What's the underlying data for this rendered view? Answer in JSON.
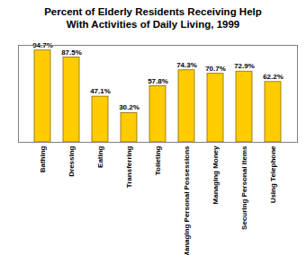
{
  "chart_data": {
    "type": "bar",
    "title": "Percent of Elderly Residents Receiving Help With Activities of Daily Living, 1999",
    "categories": [
      "Bathing",
      "Dressing",
      "Eating",
      "Transferring",
      "Toileting",
      "Managing Personal Possessions",
      "Managing Money",
      "Securing Personal Items",
      "Using Telephone"
    ],
    "values": [
      94.7,
      87.5,
      47.1,
      30.2,
      57.8,
      74.3,
      70.7,
      72.9,
      62.2
    ],
    "value_labels": [
      "94.7%",
      "87.5%",
      "47.1%",
      "30.2%",
      "57.8%",
      "74.3%",
      "70.7%",
      "72.9%",
      "62.2%"
    ],
    "color": "#ffcc00",
    "ylim": [
      0,
      100
    ],
    "data_labels": true,
    "tick_labels": "x",
    "grid": false
  }
}
